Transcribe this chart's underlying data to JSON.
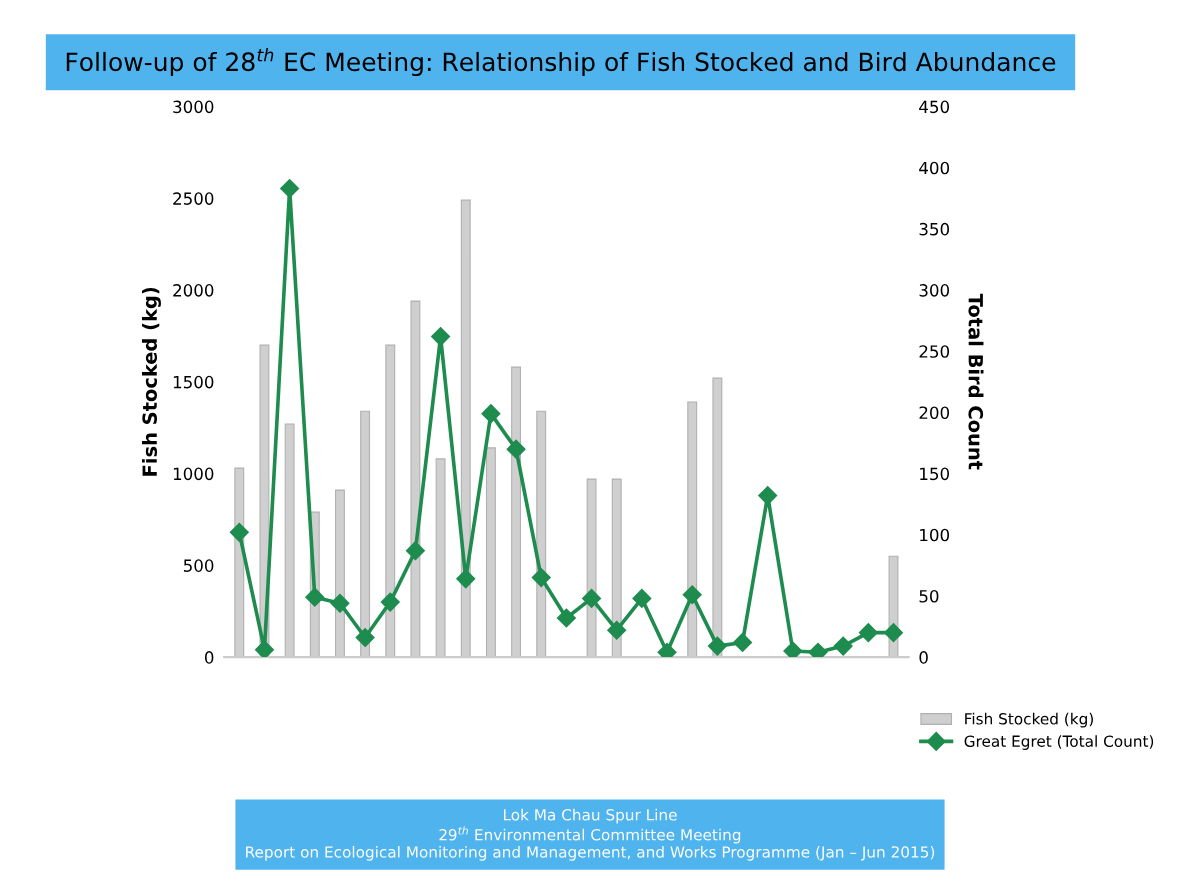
{
  "chart_data": {
    "type": "bar",
    "title": "Follow-up of 28$^{th}$ EC Meeting: Relationship of Fish Stocked and Bird Abundance",
    "categories": [
      null,
      null,
      null,
      null,
      null,
      null,
      null,
      null,
      null,
      null,
      null,
      null,
      null,
      null,
      null,
      null,
      null,
      null,
      null,
      null,
      null,
      null,
      null,
      null,
      null,
      null,
      null
    ],
    "series": [
      {
        "name": "Fish Stocked (kg)",
        "color": "#cfcfcf",
        "values": [
          1030,
          1700,
          1270,
          790,
          910,
          1340,
          1700,
          1940,
          1080,
          2490,
          1140,
          1580,
          1340,
          null,
          970,
          970,
          null,
          null,
          1390,
          1520,
          null,
          null,
          null,
          null,
          null,
          null,
          550
        ]
      },
      {
        "name": "Great Egret (Total Count)",
        "type": "line",
        "axis": "y2",
        "color": "#1e8c4e",
        "values": [
          102,
          6,
          383,
          49,
          44,
          16,
          45,
          87,
          262,
          64,
          199,
          170,
          65,
          32,
          48,
          22,
          48,
          4,
          51,
          9,
          12,
          132,
          5,
          4,
          9,
          20,
          20
        ]
      }
    ],
    "ylabel": "Fish Stocked (kg)",
    "y2label": "Total Bird Count",
    "ylim": [
      0,
      3000
    ],
    "yticks": [
      0,
      500,
      1000,
      1500,
      2000,
      2500,
      3000
    ],
    "y2lim": [
      0,
      450
    ],
    "y2ticks": [
      0,
      50,
      100,
      150,
      200,
      250,
      300,
      350,
      400,
      450
    ],
    "marker": "diamond",
    "legend": "bottom right",
    "grid": false,
    "annotations": [
      "Lok Ma Chau Spur Line\n29$^{th}$ Environmental Committee Meeting\nReport on Ecological Monitoring and Management, and Works Programme (Jan – Jun 2015)"
    ]
  }
}
